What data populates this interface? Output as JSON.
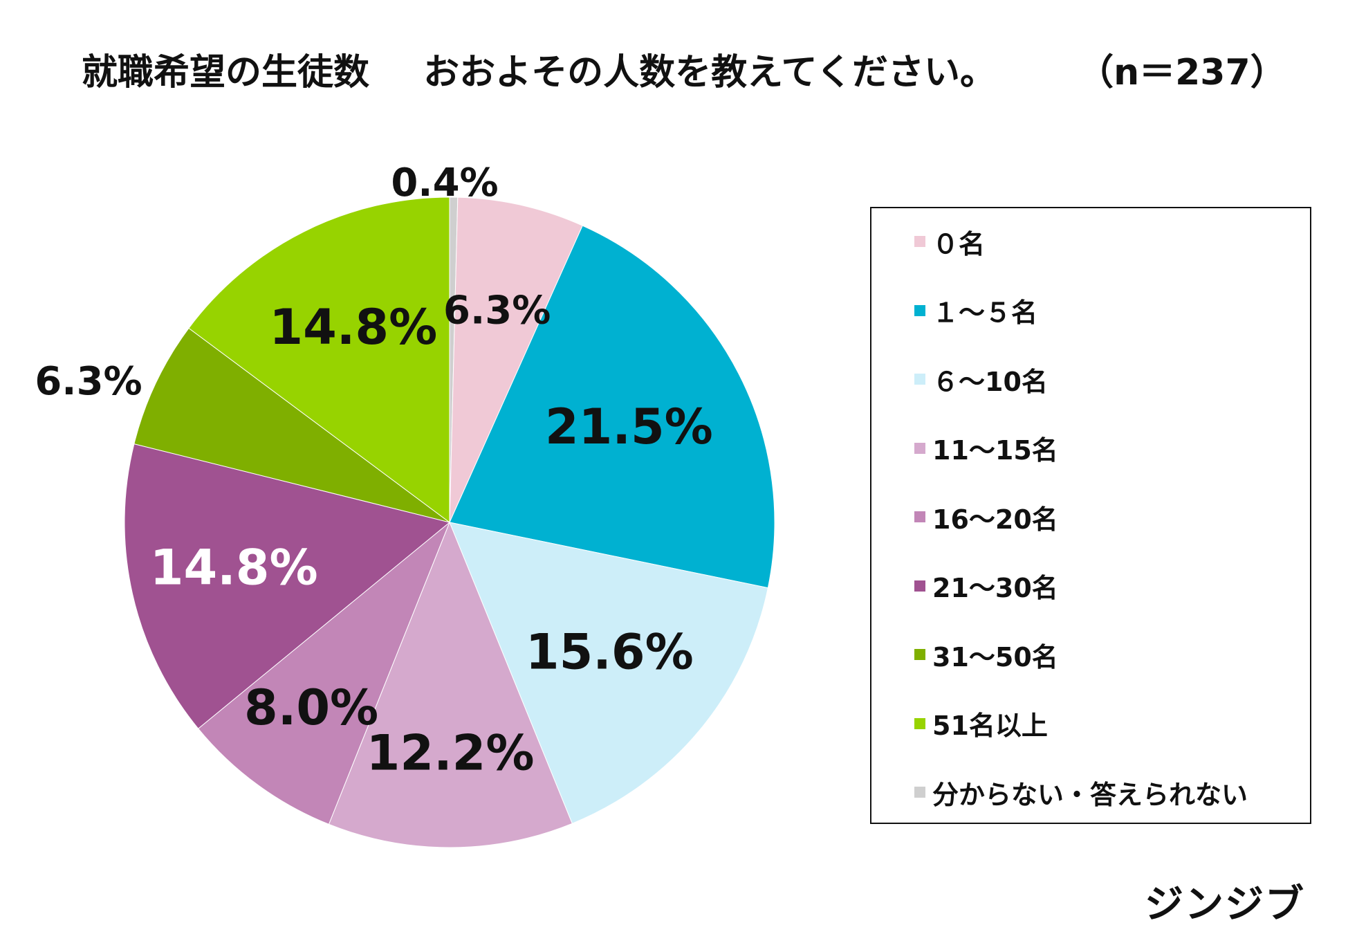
{
  "title": {
    "main": "就職希望の生徒数",
    "sub": "おおよその人数を教えてください。",
    "n": "（n＝237）"
  },
  "chart_data": {
    "type": "pie",
    "title": "就職希望の生徒数　おおよその人数を教えてください。",
    "legend_position": "right",
    "start_angle": "12 o'clock",
    "direction": "clockwise",
    "slices": [
      {
        "label": "分からない・答えられない",
        "value": 0.4,
        "display": "0.4%",
        "color": "#cfcfcf",
        "label_color": "#111111",
        "label_outside": true
      },
      {
        "label": "０名",
        "value": 6.3,
        "display": "6.3%",
        "color": "#f0c9d6",
        "label_color": "#111111",
        "label_outside": false
      },
      {
        "label": "１～５名",
        "value": 21.5,
        "display": "21.5%",
        "color": "#00b1d1",
        "label_color": "#111111",
        "label_outside": false
      },
      {
        "label": "６～10名",
        "value": 15.6,
        "display": "15.6%",
        "color": "#cdeef9",
        "label_color": "#111111",
        "label_outside": false
      },
      {
        "label": "11～15名",
        "value": 12.2,
        "display": "12.2%",
        "color": "#d5a9cd",
        "label_color": "#111111",
        "label_outside": false
      },
      {
        "label": "16～20名",
        "value": 8.0,
        "display": "8.0%",
        "color": "#c286b7",
        "label_color": "#111111",
        "label_outside": false
      },
      {
        "label": "21～30名",
        "value": 14.8,
        "display": "14.8%",
        "color": "#a05291",
        "label_color": "#ffffff",
        "label_outside": false
      },
      {
        "label": "31～50名",
        "value": 6.3,
        "display": "6.3%",
        "color": "#7faf00",
        "label_color": "#111111",
        "label_outside": true
      },
      {
        "label": "51名以上",
        "value": 14.8,
        "display": "14.8%",
        "color": "#97d300",
        "label_color": "#111111",
        "label_outside": false
      }
    ],
    "legend": [
      {
        "label": "０名",
        "color": "#f0c9d6"
      },
      {
        "label": "１～５名",
        "color": "#00b1d1"
      },
      {
        "label": "６～10名",
        "color": "#cdeef9"
      },
      {
        "label": "11～15名",
        "color": "#d5a9cd"
      },
      {
        "label": "16～20名",
        "color": "#c286b7"
      },
      {
        "label": "21～30名",
        "color": "#a05291"
      },
      {
        "label": "31～50名",
        "color": "#7faf00"
      },
      {
        "label": "51名以上",
        "color": "#97d300"
      },
      {
        "label": "分からない・答えられない",
        "color": "#cfcfcf"
      }
    ]
  },
  "brand": "ジンジブ"
}
